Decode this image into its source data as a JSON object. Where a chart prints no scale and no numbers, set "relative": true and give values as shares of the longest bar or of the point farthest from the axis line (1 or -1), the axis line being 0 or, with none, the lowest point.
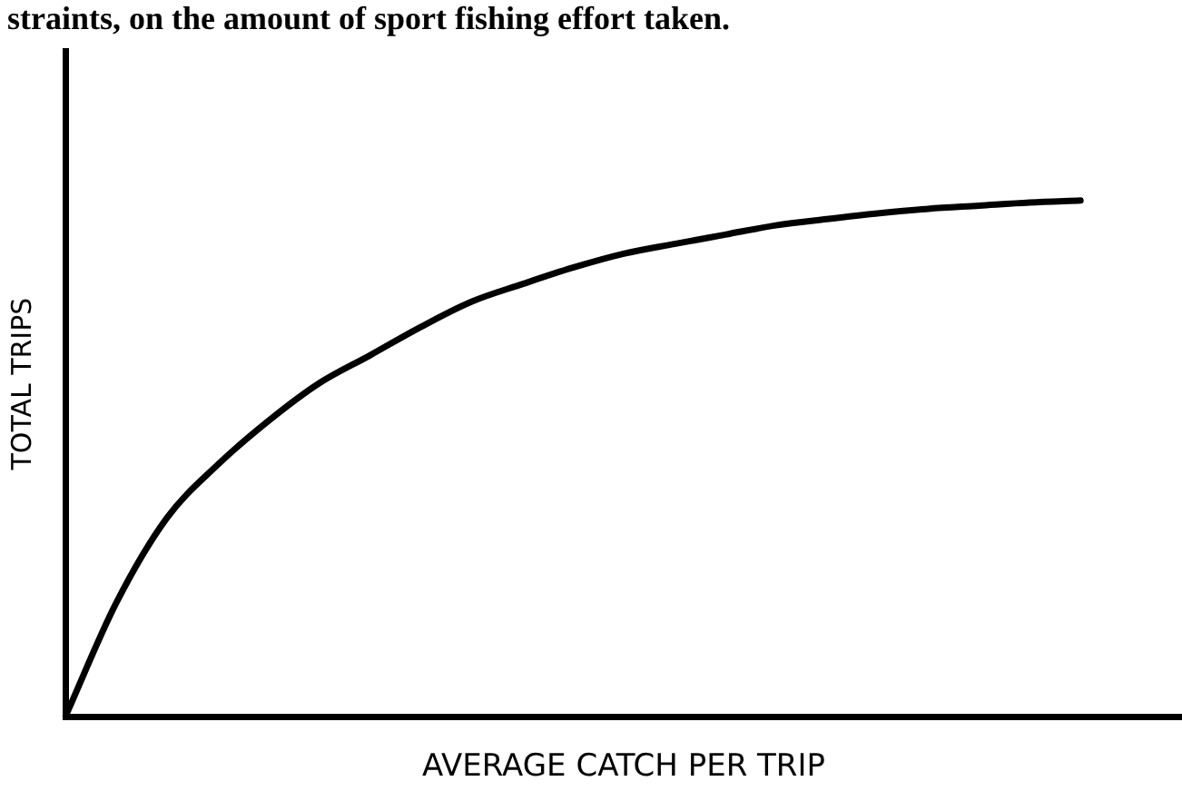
{
  "chart_data": {
    "type": "line",
    "relative": true,
    "xlabel": "AVERAGE CATCH PER TRIP",
    "ylabel": "TOTAL TRIPS",
    "annotations": [
      "straints, on the amount of sport fishing effort taken."
    ],
    "categories": [
      null,
      null,
      null,
      null,
      null,
      null,
      null,
      null,
      null,
      null,
      null,
      null,
      null,
      null,
      null,
      null,
      null,
      null,
      null,
      null,
      null,
      null,
      null
    ],
    "series": [
      {
        "color": "#000000",
        "values": [
          0,
          0.22,
          0.385,
          0.488,
          0.573,
          0.646,
          0.7,
          0.755,
          0.804,
          0.838,
          0.87,
          0.897,
          0.916,
          0.934,
          0.952,
          0.964,
          0.975,
          0.984,
          0.99,
          0.996,
          1,
          null,
          null
        ]
      }
    ],
    "marker": "none",
    "line_style": "solid",
    "grid": false,
    "legend": false,
    "tick_labels": false
  }
}
